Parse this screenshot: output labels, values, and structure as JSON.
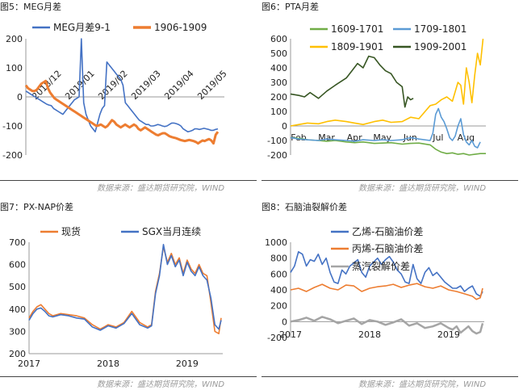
{
  "panels": {
    "p5": {
      "title": "图5：MEG月差",
      "source": "数据来源：盛达期货研究院，WIND"
    },
    "p6": {
      "title": "图6：PTA月差",
      "source": "数据来源：盛达期货研究院，WIND"
    },
    "p7": {
      "title": "图7：PX-NAP价差",
      "source": "数据来源：盛达期货研究院，WIND"
    },
    "p8": {
      "title": "图8：石脑油裂解价差",
      "source": "数据来源：盛达期货研究院，WIND"
    }
  },
  "colors": {
    "blue": "#4472c4",
    "orange": "#ed7d31",
    "green": "#70ad47",
    "gold": "#ffc000",
    "darkgreen": "#375623",
    "gray": "#a5a5a5",
    "lightblue": "#5b9bd5"
  },
  "chart_data": [
    {
      "id": "p5",
      "type": "line",
      "ylim": [
        -200,
        200
      ],
      "yticks": [
        -200,
        -100,
        0,
        100,
        200
      ],
      "xticks": [
        "2018/12",
        "2019/01",
        "2019/02",
        "2019/03",
        "2019/04",
        "2019/05"
      ],
      "series": [
        {
          "name": "MEG月差9-1",
          "color": "#4472c4",
          "values": [
            20,
            15,
            10,
            5,
            0,
            -5,
            -10,
            -15,
            -20,
            -25,
            -28,
            -30,
            -40,
            -45,
            -50,
            -55,
            -60,
            -50,
            -40,
            -30,
            -20,
            -10,
            -5,
            0,
            200,
            -20,
            -60,
            -80,
            -100,
            -110,
            -120,
            -90,
            -60,
            -40,
            -30,
            120,
            110,
            100,
            90,
            80,
            70,
            60,
            40,
            -20,
            -30,
            -40,
            -50,
            -60,
            -70,
            -80,
            -85,
            -90,
            -95,
            -95,
            -100,
            -100,
            -98,
            -95,
            -97,
            -100,
            -102,
            -100,
            -95,
            -90,
            -90,
            -92,
            -95,
            -100,
            -110,
            -115,
            -120,
            -118,
            -115,
            -110,
            -110,
            -112,
            -110,
            -108,
            -110,
            -112,
            -115,
            -115,
            -112,
            -110
          ]
        },
        {
          "name": "1906-1909",
          "color": "#ed7d31",
          "values": [
            40,
            30,
            25,
            20,
            20,
            25,
            35,
            45,
            50,
            55,
            30,
            15,
            5,
            -5,
            -10,
            -15,
            -20,
            -25,
            -30,
            -35,
            -40,
            -45,
            -50,
            -55,
            -60,
            -65,
            -70,
            -75,
            -80,
            -85,
            -90,
            -95,
            -100,
            -98,
            -95,
            -100,
            -105,
            -100,
            -90,
            -80,
            -85,
            -95,
            -100,
            -105,
            -100,
            -95,
            -100,
            -105,
            -100,
            -95,
            -100,
            -110,
            -115,
            -110,
            -105,
            -110,
            -115,
            -120,
            -125,
            -130,
            -132,
            -128,
            -125,
            -125,
            -130,
            -135,
            -138,
            -140,
            -142,
            -145,
            -148,
            -150,
            -152,
            -150,
            -148,
            -150,
            -152,
            -155,
            -160,
            -155,
            -150,
            -152,
            -148,
            -145,
            -150,
            -160,
            -130,
            -120
          ]
        }
      ]
    },
    {
      "id": "p6",
      "type": "line",
      "ylim": [
        -200,
        600
      ],
      "yticks": [
        -200,
        -100,
        0,
        100,
        200,
        300,
        400,
        500,
        600
      ],
      "xticks": [
        "Feb",
        "Mar",
        "Apr",
        "May",
        "Jun",
        "Jul",
        "Aug"
      ],
      "xrange": [
        0,
        7
      ],
      "series": [
        {
          "name": "1609-1701",
          "color": "#70ad47",
          "x": [
            0,
            0.3,
            0.6,
            1,
            1.3,
            1.6,
            2,
            2.3,
            2.6,
            3,
            3.3,
            3.6,
            4,
            4.3,
            4.6,
            5,
            5.2,
            5.4,
            5.6,
            5.8,
            6,
            6.2,
            6.4,
            6.6,
            6.8,
            7
          ],
          "values": [
            -80,
            -85,
            -95,
            -100,
            -105,
            -100,
            -110,
            -115,
            -110,
            -120,
            -118,
            -115,
            -125,
            -120,
            -118,
            -130,
            -160,
            -180,
            -190,
            -185,
            -195,
            -190,
            -200,
            -195,
            -190,
            -190
          ]
        },
        {
          "name": "1709-1801",
          "color": "#5b9bd5",
          "x": [
            0,
            0.3,
            0.6,
            1,
            1.3,
            1.6,
            2,
            2.3,
            2.6,
            3,
            3.3,
            3.6,
            4,
            4.3,
            4.6,
            5,
            5.1,
            5.2,
            5.3,
            5.4,
            5.5,
            5.6,
            5.7,
            5.8,
            5.9,
            6,
            6.1,
            6.2,
            6.3,
            6.4,
            6.5,
            6.6,
            6.7,
            6.8
          ],
          "values": [
            -80,
            -90,
            -95,
            -100,
            -90,
            -95,
            -100,
            -105,
            -95,
            -100,
            -95,
            -100,
            -95,
            -80,
            -90,
            -100,
            -50,
            80,
            120,
            60,
            30,
            -20,
            -80,
            -100,
            -70,
            0,
            50,
            -60,
            -110,
            -130,
            -100,
            -140,
            -150,
            -110
          ]
        },
        {
          "name": "1809-1901",
          "color": "#ffc000",
          "x": [
            0,
            0.3,
            0.6,
            1,
            1.3,
            1.6,
            2,
            2.3,
            2.6,
            3,
            3.3,
            3.6,
            4,
            4.3,
            4.6,
            5,
            5.2,
            5.4,
            5.6,
            5.8,
            6,
            6.1,
            6.2,
            6.3,
            6.4,
            6.5,
            6.6,
            6.7,
            6.8,
            6.9
          ],
          "values": [
            0,
            10,
            20,
            15,
            30,
            40,
            30,
            20,
            10,
            30,
            40,
            25,
            30,
            60,
            50,
            140,
            150,
            180,
            200,
            170,
            300,
            280,
            150,
            400,
            300,
            160,
            350,
            500,
            420,
            600
          ]
        },
        {
          "name": "1909-2001",
          "color": "#375623",
          "x": [
            0,
            0.3,
            0.5,
            0.7,
            1,
            1.3,
            1.6,
            2,
            2.2,
            2.4,
            2.6,
            2.8,
            3,
            3.2,
            3.4,
            3.6,
            3.8,
            4,
            4.1,
            4.2,
            4.3,
            4.4
          ],
          "values": [
            220,
            210,
            200,
            230,
            190,
            240,
            280,
            330,
            380,
            430,
            400,
            480,
            470,
            420,
            380,
            360,
            300,
            270,
            130,
            200,
            180,
            190
          ]
        }
      ]
    },
    {
      "id": "p7",
      "type": "line",
      "ylim": [
        200,
        700
      ],
      "yticks": [
        200,
        300,
        400,
        500,
        600,
        700
      ],
      "xticks": [
        "2017",
        "2018",
        "2019"
      ],
      "xrange": [
        0,
        2.45
      ],
      "series": [
        {
          "name": "现货",
          "color": "#ed7d31",
          "x": [
            0,
            0.05,
            0.1,
            0.15,
            0.2,
            0.25,
            0.3,
            0.4,
            0.5,
            0.6,
            0.7,
            0.8,
            0.9,
            0.95,
            1.0,
            1.1,
            1.2,
            1.3,
            1.4,
            1.5,
            1.55,
            1.6,
            1.65,
            1.7,
            1.75,
            1.8,
            1.85,
            1.9,
            1.95,
            2.0,
            2.05,
            2.1,
            2.15,
            2.2,
            2.25,
            2.3,
            2.35,
            2.4,
            2.43
          ],
          "values": [
            360,
            390,
            410,
            420,
            400,
            380,
            370,
            380,
            375,
            370,
            360,
            330,
            310,
            320,
            330,
            320,
            340,
            390,
            340,
            320,
            330,
            480,
            560,
            680,
            610,
            650,
            600,
            630,
            560,
            620,
            580,
            560,
            600,
            560,
            550,
            430,
            300,
            290,
            360
          ]
        },
        {
          "name": "SGX当月连续",
          "color": "#4472c4",
          "x": [
            0,
            0.05,
            0.1,
            0.15,
            0.2,
            0.25,
            0.3,
            0.4,
            0.5,
            0.6,
            0.7,
            0.8,
            0.9,
            0.95,
            1.0,
            1.1,
            1.2,
            1.3,
            1.4,
            1.5,
            1.55,
            1.6,
            1.65,
            1.7,
            1.75,
            1.8,
            1.85,
            1.9,
            1.95,
            2.0,
            2.05,
            2.1,
            2.15,
            2.2,
            2.25,
            2.3,
            2.35,
            2.4,
            2.43
          ],
          "values": [
            350,
            380,
            400,
            405,
            390,
            370,
            365,
            375,
            370,
            360,
            355,
            320,
            305,
            315,
            325,
            315,
            335,
            380,
            330,
            315,
            325,
            470,
            550,
            690,
            600,
            640,
            590,
            620,
            550,
            610,
            570,
            550,
            590,
            550,
            530,
            450,
            330,
            310,
            350
          ]
        }
      ]
    },
    {
      "id": "p8",
      "type": "line",
      "ylim": [
        -200,
        1000
      ],
      "yticks": [
        -200,
        0,
        200,
        400,
        600,
        800,
        1000
      ],
      "xticks": [
        "2017",
        "2018",
        "2019"
      ],
      "xrange": [
        0,
        2.45
      ],
      "series": [
        {
          "name": "乙烯-石脑油价差",
          "color": "#4472c4",
          "x": [
            0,
            0.05,
            0.1,
            0.15,
            0.2,
            0.25,
            0.3,
            0.35,
            0.4,
            0.45,
            0.5,
            0.55,
            0.6,
            0.65,
            0.7,
            0.75,
            0.8,
            0.85,
            0.9,
            0.95,
            1.0,
            1.05,
            1.1,
            1.15,
            1.2,
            1.25,
            1.3,
            1.35,
            1.4,
            1.45,
            1.5,
            1.55,
            1.6,
            1.65,
            1.7,
            1.75,
            1.8,
            1.85,
            1.9,
            1.95,
            2.0,
            2.05,
            2.1,
            2.15,
            2.2,
            2.25,
            2.3,
            2.35,
            2.4,
            2.43
          ],
          "values": [
            620,
            700,
            880,
            850,
            700,
            780,
            760,
            850,
            720,
            800,
            620,
            500,
            480,
            650,
            600,
            700,
            740,
            780,
            620,
            560,
            700,
            750,
            800,
            720,
            780,
            820,
            750,
            650,
            600,
            500,
            480,
            720,
            540,
            480,
            620,
            680,
            580,
            620,
            560,
            500,
            460,
            420,
            420,
            450,
            380,
            420,
            450,
            350,
            320,
            380
          ]
        },
        {
          "name": "丙烯-石脑油价差",
          "color": "#ed7d31",
          "x": [
            0,
            0.1,
            0.2,
            0.3,
            0.4,
            0.5,
            0.6,
            0.7,
            0.8,
            0.9,
            1.0,
            1.1,
            1.2,
            1.3,
            1.4,
            1.5,
            1.6,
            1.7,
            1.8,
            1.9,
            2.0,
            2.1,
            2.2,
            2.3,
            2.35,
            2.4,
            2.43
          ],
          "values": [
            400,
            420,
            380,
            430,
            470,
            420,
            400,
            460,
            450,
            380,
            420,
            440,
            450,
            470,
            430,
            460,
            480,
            440,
            420,
            450,
            400,
            380,
            350,
            320,
            280,
            300,
            420
          ]
        },
        {
          "name": "蒸汽裂解价差",
          "color": "#a5a5a5",
          "x": [
            0,
            0.1,
            0.2,
            0.3,
            0.4,
            0.5,
            0.6,
            0.7,
            0.8,
            0.9,
            1.0,
            1.1,
            1.2,
            1.3,
            1.4,
            1.5,
            1.6,
            1.7,
            1.8,
            1.9,
            2.0,
            2.05,
            2.1,
            2.15,
            2.2,
            2.25,
            2.3,
            2.35,
            2.4,
            2.43
          ],
          "values": [
            0,
            20,
            50,
            10,
            60,
            30,
            -20,
            10,
            40,
            -30,
            20,
            0,
            -40,
            -10,
            30,
            -50,
            -20,
            -80,
            -60,
            -20,
            -80,
            -100,
            -60,
            -140,
            -100,
            -60,
            -120,
            -150,
            -130,
            -20
          ]
        }
      ]
    }
  ]
}
